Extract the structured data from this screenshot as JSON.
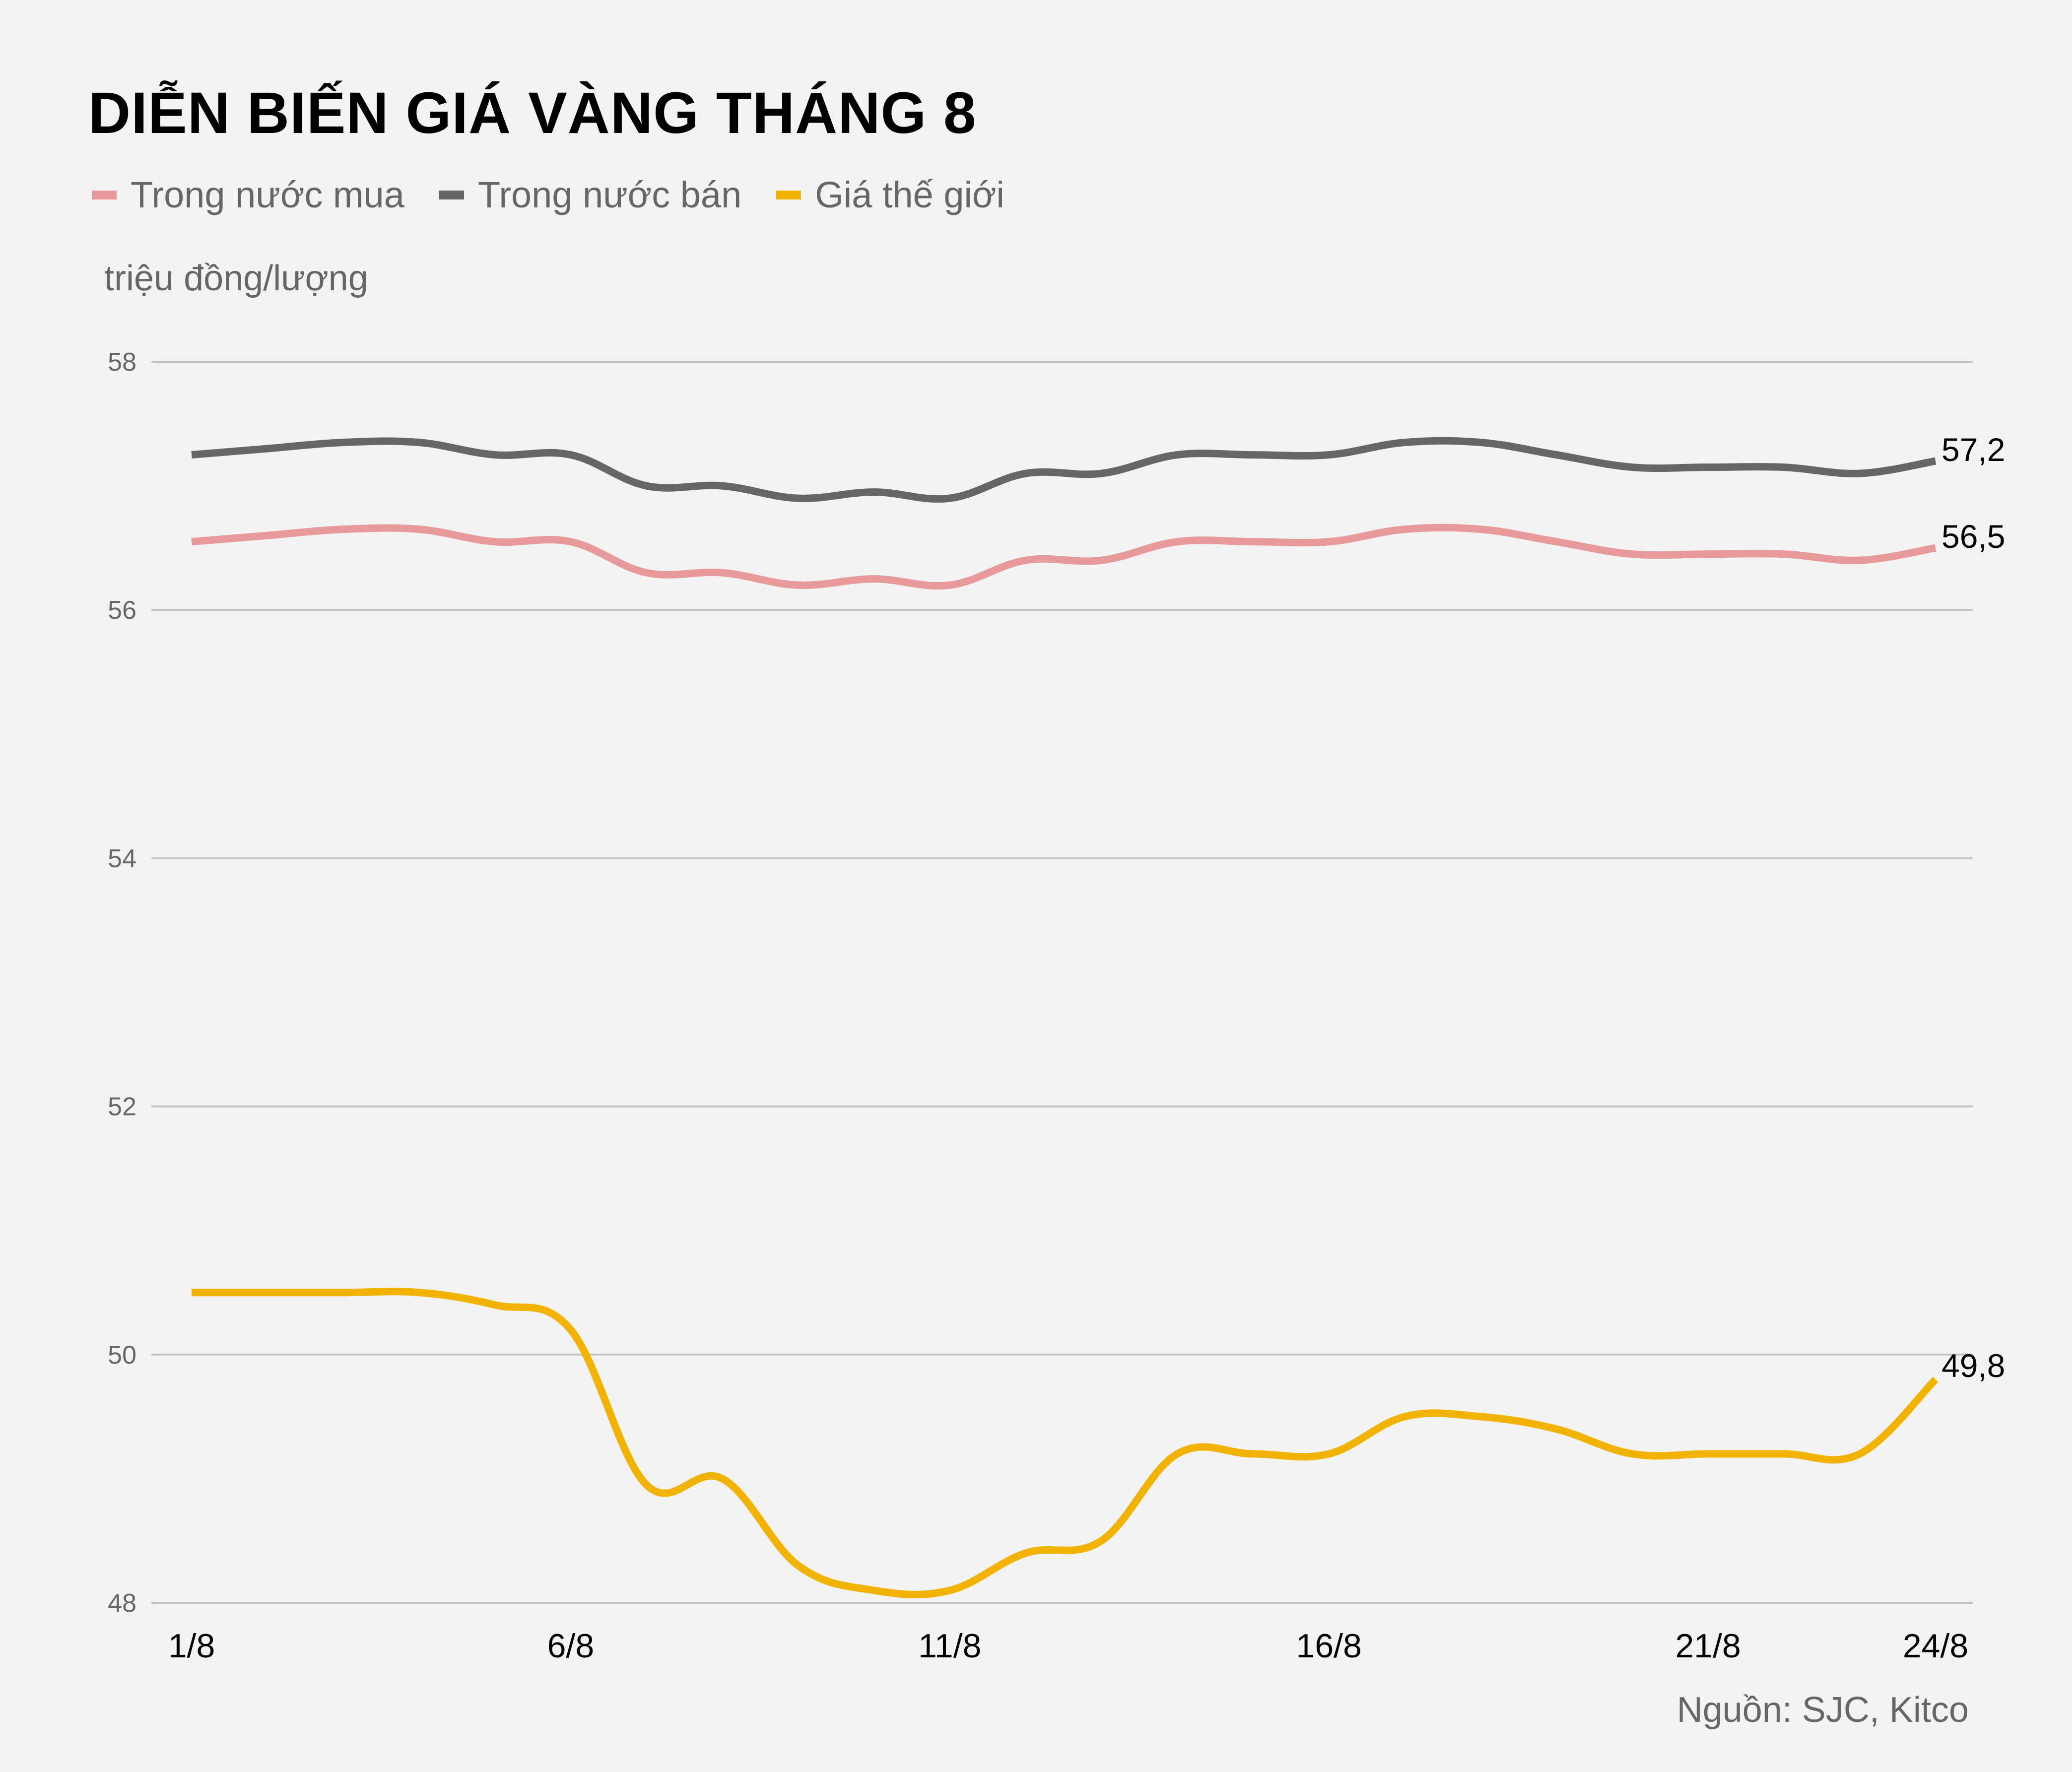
{
  "title": "DIỄN BIẾN GIÁ VÀNG THÁNG 8",
  "legend": [
    {
      "label": "Trong nước mua",
      "color": "#e89a9a"
    },
    {
      "label": "Trong nước bán",
      "color": "#666666"
    },
    {
      "label": "Giá thế giới",
      "color": "#f2b300"
    }
  ],
  "unit_label": "triệu đồng/lượng",
  "source": "Nguồn: SJC, Kitco",
  "chart_data": {
    "type": "line",
    "title": "DIỄN BIẾN GIÁ VÀNG THÁNG 8",
    "xlabel": "",
    "ylabel": "triệu đồng/lượng",
    "ylim": [
      48,
      58
    ],
    "yticks": [
      48,
      50,
      52,
      54,
      56,
      58
    ],
    "xtick_labels": [
      "1/8",
      "6/8",
      "11/8",
      "16/8",
      "21/8",
      "24/8"
    ],
    "grid": true,
    "legend_position": "top-left",
    "x": [
      "1/8",
      "2/8",
      "3/8",
      "4/8",
      "5/8",
      "6/8",
      "7/8",
      "8/8",
      "9/8",
      "10/8",
      "11/8",
      "12/8",
      "13/8",
      "14/8",
      "15/8",
      "16/8",
      "17/8",
      "18/8",
      "19/8",
      "20/8",
      "21/8",
      "22/8",
      "23/8",
      "24/8"
    ],
    "series": [
      {
        "name": "Trong nước mua",
        "color": "#e89a9a",
        "end_label": "56,5",
        "values": [
          56.55,
          56.6,
          56.65,
          56.65,
          56.55,
          56.55,
          56.3,
          56.3,
          56.2,
          56.25,
          56.2,
          56.4,
          56.4,
          56.55,
          56.55,
          56.55,
          56.65,
          56.65,
          56.55,
          56.45,
          56.45,
          56.45,
          56.4,
          56.5
        ]
      },
      {
        "name": "Trong nước bán",
        "color": "#666666",
        "end_label": "57,2",
        "values": [
          57.25,
          57.3,
          57.35,
          57.35,
          57.25,
          57.25,
          57.0,
          57.0,
          56.9,
          56.95,
          56.9,
          57.1,
          57.1,
          57.25,
          57.25,
          57.25,
          57.35,
          57.35,
          57.25,
          57.15,
          57.15,
          57.15,
          57.1,
          57.2
        ]
      },
      {
        "name": "Giá thế giới",
        "color": "#f2b300",
        "end_label": "49,8",
        "values": [
          50.5,
          50.5,
          50.5,
          50.5,
          50.4,
          50.2,
          48.95,
          49.0,
          48.3,
          48.1,
          48.1,
          48.4,
          48.5,
          49.2,
          49.2,
          49.2,
          49.5,
          49.5,
          49.4,
          49.2,
          49.2,
          49.2,
          49.2,
          49.8
        ]
      }
    ]
  }
}
